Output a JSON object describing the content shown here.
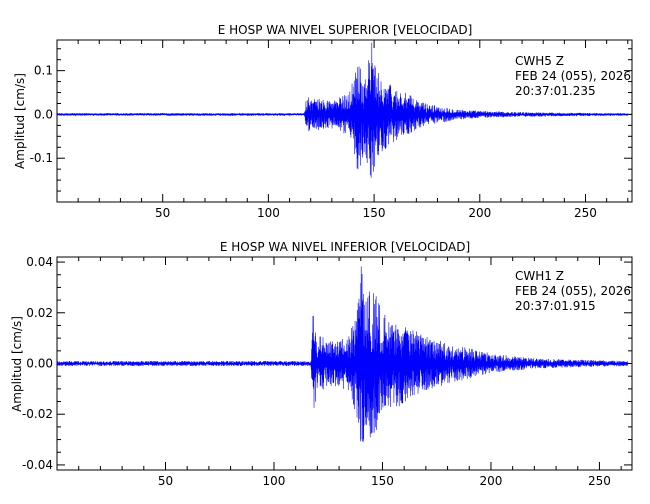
{
  "colors": {
    "trace": "#0000ff",
    "axes": "#000000",
    "zero_line": "#000000",
    "background": "#ffffff"
  },
  "chart_data": [
    {
      "type": "line",
      "title": "E HOSP WA NIVEL SUPERIOR [VELOCIDAD]",
      "ylabel": "Amplitud [cm/s]",
      "xlabel": "",
      "xlim": [
        0,
        272
      ],
      "ylim": [
        -0.2,
        0.17
      ],
      "xticks": [
        50,
        100,
        150,
        200,
        250
      ],
      "yticks": [
        0.1,
        0.0,
        -0.1
      ],
      "ytick_labels": [
        "0.1",
        "0.0",
        "-0.1"
      ],
      "info": {
        "station": "CWH5   Z",
        "date": "FEB 24 (055), 2026",
        "time": "20:37:01.235"
      },
      "series": [
        {
          "envelope": [
            [
              0,
              0.003
            ],
            [
              117,
              0.003
            ],
            [
              118,
              0.04
            ],
            [
              125,
              0.035
            ],
            [
              132,
              0.035
            ],
            [
              138,
              0.05
            ],
            [
              141,
              0.1
            ],
            [
              143,
              0.15
            ],
            [
              145,
              0.08
            ],
            [
              147,
              0.12
            ],
            [
              149,
              0.17
            ],
            [
              151,
              0.1
            ],
            [
              155,
              0.08
            ],
            [
              160,
              0.06
            ],
            [
              165,
              0.05
            ],
            [
              170,
              0.035
            ],
            [
              175,
              0.025
            ],
            [
              180,
              0.02
            ],
            [
              190,
              0.012
            ],
            [
              200,
              0.008
            ],
            [
              215,
              0.006
            ],
            [
              240,
              0.004
            ],
            [
              270,
              0.003
            ]
          ]
        }
      ]
    },
    {
      "type": "line",
      "title": "E HOSP WA NIVEL INFERIOR [VELOCIDAD]",
      "ylabel": "Amplitud [cm/s]",
      "xlabel": "",
      "xlim": [
        0,
        265
      ],
      "ylim": [
        -0.042,
        0.042
      ],
      "xticks": [
        50,
        100,
        150,
        200,
        250
      ],
      "yticks": [
        0.04,
        0.02,
        0.0,
        -0.02,
        -0.04
      ],
      "ytick_labels": [
        "0.04",
        "0.02",
        "0.00",
        "-0.02",
        "-0.04"
      ],
      "info": {
        "station": "CWH1   Z",
        "date": "FEB 24 (055), 2026",
        "time": "20:37:01.915"
      },
      "series": [
        {
          "envelope": [
            [
              0,
              0.001
            ],
            [
              117,
              0.001
            ],
            [
              118,
              0.022
            ],
            [
              120,
              0.012
            ],
            [
              125,
              0.009
            ],
            [
              130,
              0.009
            ],
            [
              135,
              0.012
            ],
            [
              138,
              0.022
            ],
            [
              140,
              0.042
            ],
            [
              142,
              0.03
            ],
            [
              145,
              0.03
            ],
            [
              148,
              0.025
            ],
            [
              150,
              0.02
            ],
            [
              155,
              0.018
            ],
            [
              160,
              0.016
            ],
            [
              165,
              0.013
            ],
            [
              170,
              0.011
            ],
            [
              180,
              0.008
            ],
            [
              190,
              0.006
            ],
            [
              200,
              0.004
            ],
            [
              220,
              0.002
            ],
            [
              240,
              0.0015
            ],
            [
              263,
              0.001
            ]
          ]
        }
      ]
    }
  ]
}
